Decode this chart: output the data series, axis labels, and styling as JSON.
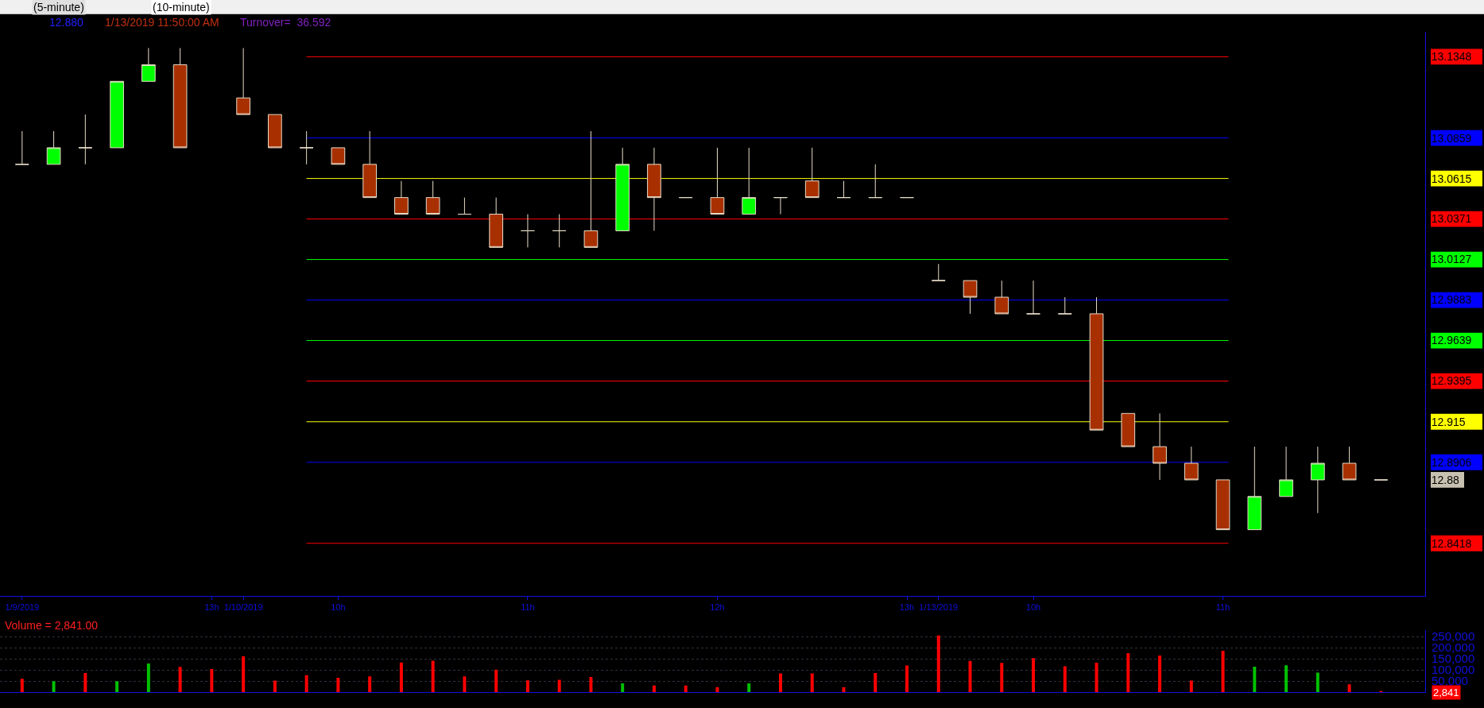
{
  "chart_data": [
    {
      "type": "candlestick",
      "categories": [
        "1/9/2019",
        null,
        null,
        null,
        null,
        null,
        "13h",
        "1/10/2019",
        null,
        null,
        "10h",
        null,
        null,
        null,
        null,
        null,
        "11h",
        null,
        null,
        null,
        null,
        null,
        "12h",
        null,
        null,
        null,
        null,
        null,
        "13h",
        "1/13/2019",
        null,
        null,
        "10h",
        null,
        null,
        null,
        null,
        null,
        "11h",
        null,
        null,
        null,
        null,
        null
      ],
      "ohlc": [
        [
          13.07,
          13.09,
          13.07,
          13.07
        ],
        [
          13.07,
          13.09,
          13.07,
          13.08
        ],
        [
          13.08,
          13.1,
          13.07,
          13.08
        ],
        [
          13.08,
          13.12,
          13.08,
          13.12
        ],
        [
          13.12,
          13.14,
          13.12,
          13.13
        ],
        [
          13.13,
          13.14,
          13.08,
          13.08
        ],
        null,
        [
          13.11,
          13.14,
          13.1,
          13.1
        ],
        [
          13.1,
          13.1,
          13.08,
          13.08
        ],
        [
          13.08,
          13.09,
          13.07,
          13.08
        ],
        [
          13.08,
          13.08,
          13.07,
          13.07
        ],
        [
          13.07,
          13.09,
          13.05,
          13.05
        ],
        [
          13.05,
          13.06,
          13.04,
          13.04
        ],
        [
          13.05,
          13.06,
          13.04,
          13.04
        ],
        [
          13.04,
          13.05,
          13.04,
          13.04
        ],
        [
          13.04,
          13.05,
          13.02,
          13.02
        ],
        [
          13.03,
          13.04,
          13.02,
          13.03
        ],
        [
          13.03,
          13.04,
          13.02,
          13.03
        ],
        [
          13.03,
          13.09,
          13.02,
          13.02
        ],
        [
          13.03,
          13.08,
          13.03,
          13.07
        ],
        [
          13.07,
          13.08,
          13.03,
          13.05
        ],
        [
          13.05,
          13.05,
          13.05,
          13.05
        ],
        [
          13.05,
          13.08,
          13.04,
          13.04
        ],
        [
          13.04,
          13.08,
          13.04,
          13.05
        ],
        [
          13.05,
          13.05,
          13.04,
          13.05
        ],
        [
          13.06,
          13.08,
          13.05,
          13.05
        ],
        [
          13.05,
          13.06,
          13.05,
          13.05
        ],
        [
          13.05,
          13.07,
          13.05,
          13.05
        ],
        [
          13.05,
          13.05,
          13.05,
          13.05
        ],
        [
          13.0,
          13.01,
          13.0,
          13.0
        ],
        [
          13.0,
          13.0,
          12.98,
          12.99
        ],
        [
          12.99,
          13.0,
          12.98,
          12.98
        ],
        [
          12.98,
          13.0,
          12.98,
          12.98
        ],
        [
          12.98,
          12.99,
          12.98,
          12.98
        ],
        [
          12.98,
          12.99,
          12.91,
          12.91
        ],
        [
          12.92,
          12.92,
          12.9,
          12.9
        ],
        [
          12.9,
          12.92,
          12.88,
          12.89
        ],
        [
          12.89,
          12.9,
          12.88,
          12.88
        ],
        [
          12.88,
          12.88,
          12.85,
          12.85
        ],
        [
          12.85,
          12.9,
          12.85,
          12.87
        ],
        [
          12.87,
          12.9,
          12.87,
          12.88
        ],
        [
          12.88,
          12.9,
          12.86,
          12.89
        ],
        [
          12.89,
          12.9,
          12.88,
          12.88
        ],
        [
          12.88,
          12.88,
          12.88,
          12.88
        ]
      ],
      "colors": [
        "#e8dcc8",
        "#00ff00",
        "#e8dcc8",
        "#00ff00",
        "#00ff00",
        "#a83000",
        null,
        "#a83000",
        "#a83000",
        "#e8dcc8",
        "#a83000",
        "#a83000",
        "#a83000",
        "#a83000",
        "#e8dcc8",
        "#a83000",
        "#e8dcc8",
        "#e8dcc8",
        "#a83000",
        "#00ff00",
        "#a83000",
        "#e8dcc8",
        "#a83000",
        "#00ff00",
        "#e8dcc8",
        "#a83000",
        "#e8dcc8",
        "#e8dcc8",
        "#e8dcc8",
        "#e8dcc8",
        "#a83000",
        "#a83000",
        "#e8dcc8",
        "#e8dcc8",
        "#a83000",
        "#a83000",
        "#a83000",
        "#a83000",
        "#a83000",
        "#00ff00",
        "#00ff00",
        "#00ff00",
        "#a83000",
        "#e8dcc8"
      ],
      "ylim": [
        12.81,
        13.15
      ],
      "yticks": [
        13.1348,
        13.0859,
        13.0615,
        13.0371,
        13.0127,
        12.9883,
        12.9639,
        12.9395,
        12.915,
        12.8906,
        12.88,
        12.8418
      ],
      "ref_lines": [
        {
          "axis": "y",
          "value": 13.1348,
          "color": "#ff0000"
        },
        {
          "axis": "y",
          "value": 13.0859,
          "color": "#0000ff"
        },
        {
          "axis": "y",
          "value": 13.0615,
          "color": "#ffff00"
        },
        {
          "axis": "y",
          "value": 13.0371,
          "color": "#ff0000"
        },
        {
          "axis": "y",
          "value": 13.0127,
          "color": "#00ff00"
        },
        {
          "axis": "y",
          "value": 12.9883,
          "color": "#0000ff"
        },
        {
          "axis": "y",
          "value": 12.9639,
          "color": "#00ff00"
        },
        {
          "axis": "y",
          "value": 12.9395,
          "color": "#ff0000"
        },
        {
          "axis": "y",
          "value": 12.915,
          "color": "#ffff00"
        },
        {
          "axis": "y",
          "value": 12.8906,
          "color": "#0000ff"
        },
        {
          "axis": "y",
          "value": 12.8418,
          "color": "#ff0000"
        }
      ],
      "annotations": [
        "(5-minute)",
        "(10-minute)",
        "12.880",
        "1/13/2019 11:50:00 AM",
        "Turnover=  36.592"
      ],
      "legend": false,
      "grid": false
    },
    {
      "type": "bar",
      "title": "Volume = 2,841.00",
      "categories": [
        null,
        null,
        null,
        null,
        null,
        null,
        null,
        null,
        null,
        null,
        null,
        null,
        null,
        null,
        null,
        null,
        null,
        null,
        null,
        null,
        null,
        null,
        null,
        null,
        null,
        null,
        null,
        null,
        null,
        null,
        null,
        null,
        null,
        null,
        null,
        null,
        null,
        null,
        null,
        null,
        null,
        null,
        null,
        null
      ],
      "values": [
        60000,
        50000,
        86000,
        50000,
        129000,
        114000,
        104000,
        161000,
        52000,
        76000,
        65000,
        71000,
        134000,
        142000,
        71000,
        101000,
        53000,
        56000,
        68000,
        40000,
        30000,
        30000,
        23000,
        40000,
        84000,
        84000,
        23000,
        86000,
        120000,
        255000,
        141000,
        132000,
        153000,
        117000,
        133000,
        176000,
        165000,
        52000,
        186000,
        115000,
        121000,
        88000,
        35000,
        2841
      ],
      "colors": [
        "#ff0000",
        "#00c000",
        "#ff0000",
        "#00c000",
        "#00c000",
        "#ff0000",
        "#ff0000",
        "#ff0000",
        "#ff0000",
        "#ff0000",
        "#ff0000",
        "#ff0000",
        "#ff0000",
        "#ff0000",
        "#ff0000",
        "#ff0000",
        "#ff0000",
        "#ff0000",
        "#ff0000",
        "#00c000",
        "#ff0000",
        "#ff0000",
        "#ff0000",
        "#00c000",
        "#ff0000",
        "#ff0000",
        "#ff0000",
        "#ff0000",
        "#ff0000",
        "#ff0000",
        "#ff0000",
        "#ff0000",
        "#ff0000",
        "#ff0000",
        "#ff0000",
        "#ff0000",
        "#ff0000",
        "#ff0000",
        "#ff0000",
        "#00c000",
        "#00c000",
        "#00c000",
        "#ff0000",
        "#ff0000"
      ],
      "ylim": [
        0,
        280000
      ],
      "yticks": [
        0,
        {
          "value": 50000,
          "label": "50,000"
        },
        {
          "value": 100000,
          "label": "100,000"
        },
        {
          "value": 150000,
          "label": "150,000"
        },
        {
          "value": 200000,
          "label": "200,000"
        },
        {
          "value": 250000,
          "label": "250,000"
        }
      ],
      "tick_labels": "y",
      "annotations": [
        "2,841"
      ],
      "legend": false,
      "grid": "y"
    }
  ]
}
